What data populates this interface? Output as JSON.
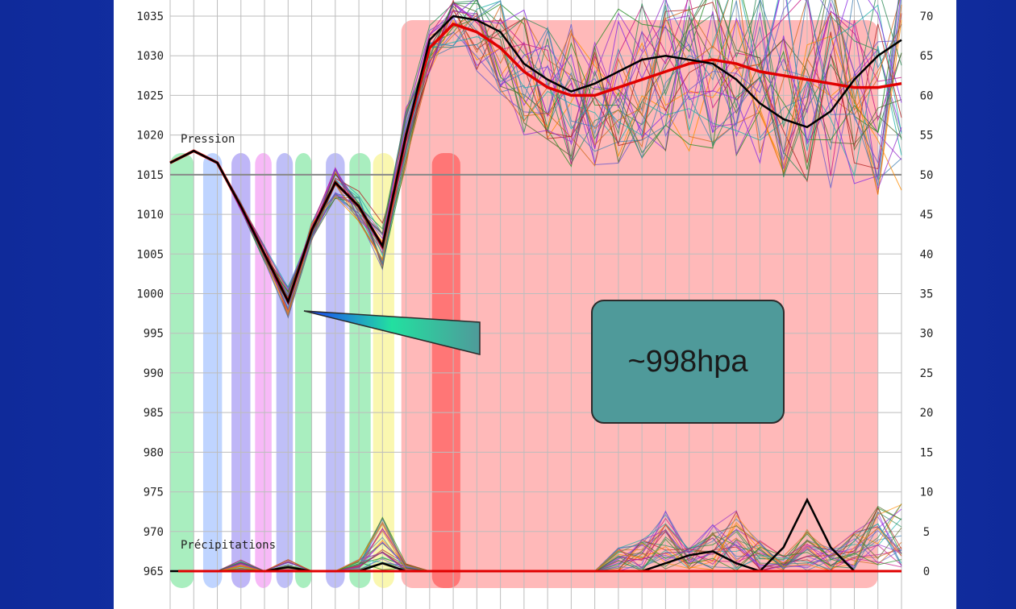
{
  "chart_data": {
    "type": "line",
    "left_axis": {
      "ticks": [
        1035,
        1030,
        1025,
        1020,
        1015,
        1010,
        1005,
        1000,
        995,
        990,
        985,
        980,
        975,
        970,
        965
      ],
      "ylim": [
        965,
        1035
      ]
    },
    "right_axis": {
      "ticks": [
        70,
        65,
        60,
        55,
        50,
        45,
        40,
        35,
        30,
        25,
        20,
        15,
        10,
        5,
        0
      ],
      "ylim": [
        0,
        70
      ]
    },
    "series_labels": {
      "pressure": "Pression",
      "precip": "Précipitations"
    },
    "x_steps": 31,
    "pressure_control": [
      1016.5,
      1018,
      1016.5,
      1011,
      1005,
      999,
      1008,
      1014,
      1011,
      1006,
      1020,
      1032,
      1035,
      1034.5,
      1033,
      1029,
      1027,
      1025.5,
      1026.5,
      1028,
      1029.5,
      1030,
      1029.5,
      1029,
      1027,
      1024,
      1022,
      1021,
      1023,
      1027,
      1030,
      1032
    ],
    "pressure_mean": [
      1016.5,
      1018,
      1016.5,
      1011,
      1005,
      999,
      1008,
      1014,
      1011,
      1006,
      1020,
      1031,
      1034,
      1033,
      1031,
      1028,
      1026,
      1025,
      1025,
      1026,
      1027,
      1028,
      1029,
      1029.5,
      1029,
      1028,
      1027.5,
      1027,
      1026.5,
      1026,
      1026,
      1026.5
    ],
    "ensemble_spread": [
      0,
      0,
      0,
      0.5,
      1,
      2,
      1.5,
      2,
      2,
      3,
      4,
      3,
      3,
      5,
      6,
      8,
      8,
      9,
      9,
      10,
      10,
      11,
      11,
      12,
      12,
      13,
      13,
      13,
      14,
      14,
      14,
      14
    ],
    "precip_control": [
      0,
      0,
      0,
      0,
      0,
      0.5,
      0,
      0,
      0,
      1,
      0,
      0,
      0,
      0,
      0,
      0,
      0,
      0,
      0,
      0,
      0,
      1,
      2,
      2.5,
      1,
      0,
      3,
      9,
      3,
      0,
      0,
      0
    ],
    "precip_peaks": [
      0,
      0,
      0,
      1.5,
      0,
      1.5,
      0,
      0,
      1.5,
      7,
      1,
      0,
      0,
      0,
      0,
      0,
      0,
      0,
      0,
      3,
      4,
      8,
      3,
      6,
      8,
      4,
      2,
      6,
      3,
      5,
      9,
      9
    ],
    "annotation": "~998hpa",
    "colors": {
      "control": "#000000",
      "mean": "#e00000",
      "grid": "#bdbdbd",
      "ref_line": "#888888"
    },
    "highlight_bands": [
      {
        "x0": 0,
        "x1": 1,
        "color": "#63e08a"
      },
      {
        "x0": 1.4,
        "x1": 2.2,
        "color": "#8ab0ff"
      },
      {
        "x0": 2.6,
        "x1": 3.4,
        "color": "#8a7af0"
      },
      {
        "x0": 3.6,
        "x1": 4.3,
        "color": "#f080f0"
      },
      {
        "x0": 4.5,
        "x1": 5.2,
        "color": "#8a8af0"
      },
      {
        "x0": 5.3,
        "x1": 6.0,
        "color": "#63e08a"
      },
      {
        "x0": 6.6,
        "x1": 7.4,
        "color": "#8a8af0"
      },
      {
        "x0": 7.6,
        "x1": 8.5,
        "color": "#63e08a"
      },
      {
        "x0": 8.6,
        "x1": 9.5,
        "color": "#f5f070"
      },
      {
        "x0": 9.8,
        "x1": 30,
        "color": "#ff8080"
      },
      {
        "x0": 11.1,
        "x1": 12.3,
        "color": "#ff4040"
      }
    ]
  }
}
